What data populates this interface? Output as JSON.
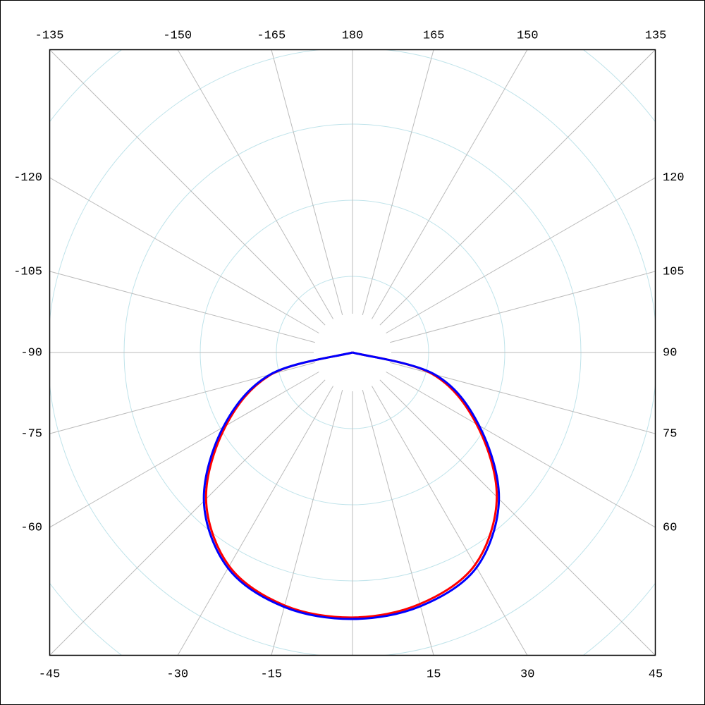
{
  "chart_data": {
    "type": "polar",
    "theta": [
      -90,
      -75,
      -60,
      -45,
      -30,
      -15,
      0,
      15,
      30,
      45,
      60,
      75,
      90
    ],
    "series": [
      {
        "color": "#ff0000",
        "values": [
          0,
          1.1,
          1.92,
          2.72,
          3.24,
          3.44,
          3.48,
          3.42,
          3.22,
          2.68,
          1.88,
          1.08,
          0
        ]
      },
      {
        "color": "#0000ff",
        "values": [
          0,
          1.12,
          1.96,
          2.76,
          3.27,
          3.46,
          3.5,
          3.45,
          3.26,
          2.72,
          1.92,
          1.12,
          0
        ]
      }
    ],
    "rlim": [
      0,
      4
    ],
    "rgrid": [
      1,
      2,
      3,
      4,
      5
    ],
    "thetaticks": [
      180,
      -165,
      -150,
      -135,
      -120,
      -105,
      -90,
      -75,
      -60,
      -45,
      -30,
      -15,
      {
        "value": 0,
        "label": null
      },
      15,
      30,
      45,
      60,
      75,
      90,
      105,
      120,
      135,
      150,
      165
    ],
    "grid": true
  }
}
